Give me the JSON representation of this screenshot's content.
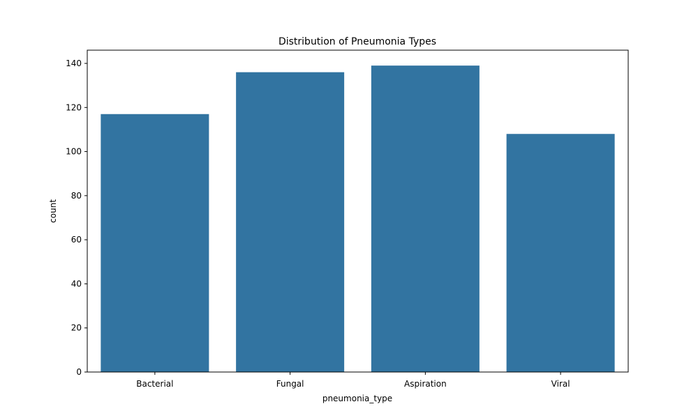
{
  "chart_data": {
    "type": "bar",
    "title": "Distribution of Pneumonia Types",
    "xlabel": "pneumonia_type",
    "ylabel": "count",
    "categories": [
      "Bacterial",
      "Fungal",
      "Aspiration",
      "Viral"
    ],
    "values": [
      117,
      136,
      139,
      108
    ],
    "ylim": [
      0,
      146
    ],
    "yticks": [
      0,
      20,
      40,
      60,
      80,
      100,
      120,
      140
    ],
    "grid": false,
    "legend": "none",
    "bar_color": "#3274a1"
  }
}
